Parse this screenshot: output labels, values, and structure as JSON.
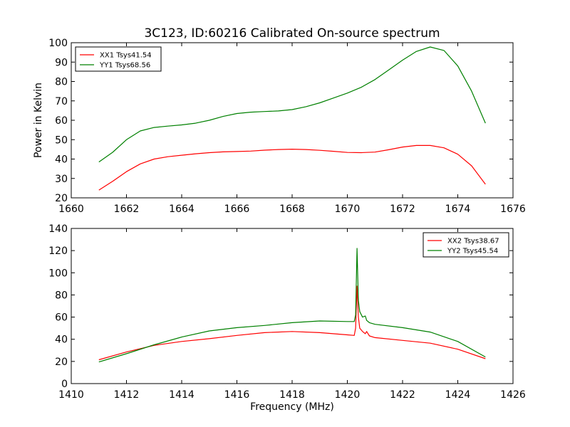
{
  "figure_title": "3C123, ID:60216 Calibrated On-source spectrum",
  "chart_data": [
    {
      "type": "line",
      "xlabel": "",
      "ylabel": "Power in Kelvin",
      "xlim": [
        1660,
        1676
      ],
      "ylim": [
        20,
        100
      ],
      "xticks": [
        1660,
        1662,
        1664,
        1666,
        1668,
        1670,
        1672,
        1674,
        1676
      ],
      "yticks": [
        20,
        30,
        40,
        50,
        60,
        70,
        80,
        90,
        100
      ],
      "grid": false,
      "legend_position": "top-left",
      "series": [
        {
          "name": "XX1 Tsys41.54",
          "color": "#ff0000",
          "x": [
            1661.0,
            1661.5,
            1662.0,
            1662.5,
            1663.0,
            1663.5,
            1664.0,
            1664.5,
            1665.0,
            1665.5,
            1666.0,
            1666.5,
            1667.0,
            1667.5,
            1668.0,
            1668.5,
            1669.0,
            1669.5,
            1670.0,
            1670.5,
            1671.0,
            1671.5,
            1672.0,
            1672.5,
            1673.0,
            1673.5,
            1674.0,
            1674.5,
            1675.0
          ],
          "values": [
            24,
            28.5,
            33.5,
            37.5,
            40.0,
            41.2,
            42.0,
            42.7,
            43.3,
            43.7,
            43.9,
            44.1,
            44.6,
            44.9,
            45.1,
            44.9,
            44.5,
            44.0,
            43.4,
            43.3,
            43.6,
            44.8,
            46.2,
            47.0,
            47.0,
            45.8,
            42.5,
            36.5,
            27.0
          ]
        },
        {
          "name": "YY1 Tsys68.56",
          "color": "#008000",
          "x": [
            1661.0,
            1661.5,
            1662.0,
            1662.5,
            1663.0,
            1663.5,
            1664.0,
            1664.5,
            1665.0,
            1665.5,
            1666.0,
            1666.5,
            1667.0,
            1667.5,
            1668.0,
            1668.5,
            1669.0,
            1669.5,
            1670.0,
            1670.5,
            1671.0,
            1671.5,
            1672.0,
            1672.5,
            1673.0,
            1673.5,
            1674.0,
            1674.5,
            1675.0
          ],
          "values": [
            38.5,
            43.5,
            50.0,
            54.5,
            56.3,
            57.0,
            57.6,
            58.5,
            60.0,
            62.0,
            63.5,
            64.2,
            64.5,
            64.8,
            65.5,
            67.0,
            69.0,
            71.5,
            74.0,
            77.0,
            81.0,
            86.0,
            91.0,
            95.5,
            97.8,
            96.0,
            88.0,
            75.0,
            58.5
          ]
        }
      ]
    },
    {
      "type": "line",
      "xlabel": "Frequency (MHz)",
      "ylabel": "",
      "xlim": [
        1410,
        1426
      ],
      "ylim": [
        0,
        140
      ],
      "xticks": [
        1410,
        1412,
        1414,
        1416,
        1418,
        1420,
        1422,
        1424,
        1426
      ],
      "yticks": [
        0,
        20,
        40,
        60,
        80,
        100,
        120,
        140
      ],
      "grid": false,
      "legend_position": "top-right",
      "series": [
        {
          "name": "XX2 Tsys38.67",
          "color": "#ff0000",
          "x": [
            1411.0,
            1412.0,
            1413.0,
            1414.0,
            1415.0,
            1416.0,
            1417.0,
            1418.0,
            1419.0,
            1420.0,
            1420.25,
            1420.3,
            1420.35,
            1420.4,
            1420.45,
            1420.55,
            1420.65,
            1420.7,
            1420.8,
            1421.0,
            1422.0,
            1423.0,
            1424.0,
            1425.0
          ],
          "values": [
            21.5,
            28.5,
            34.5,
            38.0,
            40.5,
            43.5,
            46.0,
            47.0,
            46.0,
            44.0,
            43.5,
            50.0,
            88.0,
            60.0,
            50.0,
            47.0,
            45.0,
            47.0,
            43.0,
            41.5,
            39.0,
            36.5,
            31.0,
            22.5
          ]
        },
        {
          "name": "YY2 Tsys45.54",
          "color": "#008000",
          "x": [
            1411.0,
            1412.0,
            1413.0,
            1414.0,
            1415.0,
            1416.0,
            1417.0,
            1418.0,
            1419.0,
            1420.0,
            1420.25,
            1420.3,
            1420.35,
            1420.4,
            1420.45,
            1420.55,
            1420.65,
            1420.7,
            1420.8,
            1421.0,
            1422.0,
            1423.0,
            1424.0,
            1425.0
          ],
          "values": [
            19.5,
            27.0,
            35.0,
            42.0,
            47.5,
            50.5,
            52.5,
            55.0,
            56.5,
            56.0,
            56.0,
            62.0,
            122.0,
            75.0,
            65.0,
            60.0,
            61.0,
            57.0,
            55.0,
            53.5,
            50.5,
            46.5,
            38.0,
            24.0
          ]
        }
      ]
    }
  ]
}
